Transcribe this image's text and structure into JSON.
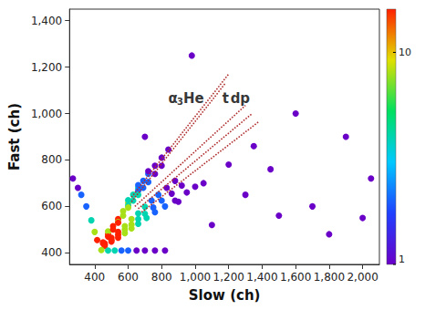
{
  "chart_data": {
    "type": "scatter",
    "x_label": "Slow (ch)",
    "y_label": "Fast (ch)",
    "xlim": [
      250,
      2100
    ],
    "xticks": [
      400,
      600,
      800,
      1000,
      1200,
      1400,
      1600,
      1800,
      2000
    ],
    "ylim": [
      350,
      1450
    ],
    "yticks": [
      400,
      600,
      800,
      1000,
      1200,
      1400
    ],
    "grid": false,
    "marker": "circle",
    "x": [
      450,
      480,
      510,
      540,
      570,
      600,
      630,
      660,
      690,
      720,
      760,
      800,
      840,
      480,
      540,
      600,
      600,
      660,
      660,
      720,
      450,
      480,
      510,
      540,
      570,
      600,
      630,
      660,
      690,
      720,
      760,
      800,
      460,
      500,
      540,
      580,
      620,
      660,
      700,
      740,
      780,
      830,
      880,
      460,
      500,
      540,
      580,
      620,
      660,
      700,
      750,
      800,
      860,
      920,
      460,
      500,
      540,
      580,
      620,
      660,
      710,
      760,
      820,
      880,
      950,
      1000,
      440,
      480,
      520,
      560,
      600,
      650,
      700,
      760,
      820,
      270,
      300,
      320,
      350,
      380,
      400,
      415,
      900,
      1050,
      1200,
      1350,
      1500,
      1700,
      1900,
      2050,
      1100,
      1300,
      980,
      1600,
      1800,
      2000,
      700,
      1450
    ],
    "values": [
      445,
      480,
      515,
      545,
      580,
      615,
      650,
      680,
      710,
      740,
      775,
      810,
      845,
      492,
      533,
      627,
      603,
      668,
      692,
      752,
      440,
      470,
      500,
      530,
      560,
      595,
      625,
      650,
      680,
      705,
      740,
      775,
      440,
      465,
      490,
      515,
      545,
      570,
      598,
      625,
      650,
      680,
      710,
      435,
      455,
      478,
      500,
      522,
      545,
      568,
      595,
      625,
      655,
      690,
      430,
      448,
      465,
      485,
      505,
      525,
      550,
      575,
      600,
      625,
      660,
      685,
      412,
      410,
      410,
      410,
      410,
      410,
      410,
      410,
      410,
      720,
      680,
      650,
      600,
      540,
      490,
      455,
      620,
      700,
      780,
      860,
      560,
      600,
      900,
      720,
      520,
      650,
      1250,
      1000,
      480,
      550,
      900,
      760
    ],
    "counts": [
      16,
      16,
      16,
      16,
      8,
      8,
      4,
      4,
      2,
      2,
      1,
      1,
      1,
      8,
      8,
      4,
      4,
      2,
      2,
      1,
      16,
      16,
      16,
      16,
      8,
      8,
      4,
      4,
      2,
      2,
      1,
      1,
      16,
      16,
      16,
      8,
      8,
      4,
      4,
      2,
      2,
      1,
      1,
      16,
      16,
      16,
      8,
      8,
      4,
      4,
      2,
      2,
      1,
      1,
      16,
      16,
      16,
      8,
      8,
      4,
      4,
      2,
      2,
      1,
      1,
      1,
      8,
      4,
      4,
      2,
      2,
      1,
      1,
      1,
      1,
      1,
      1,
      2,
      2,
      4,
      8,
      16,
      1,
      1,
      1,
      1,
      1,
      1,
      1,
      1,
      1,
      1,
      1,
      1,
      1,
      1,
      1,
      1
    ],
    "colorbar": {
      "range": [
        1,
        16
      ],
      "ticks": [
        1,
        10
      ],
      "log": true,
      "colors": [
        "#6a00c8",
        "#2040ff",
        "#00c8ff",
        "#00e060",
        "#e0e000",
        "#ff2000"
      ]
    },
    "lines": [
      {
        "color": "#b03030",
        "line_style": "dotted",
        "x": [
          620,
          1200
        ],
        "values": [
          640,
          1170
        ]
      },
      {
        "color": "#b03030",
        "line_style": "dotted",
        "x": [
          620,
          1180
        ],
        "values": [
          620,
          1130
        ]
      },
      {
        "color": "#b03030",
        "line_style": "dotted",
        "x": [
          640,
          1300
        ],
        "values": [
          600,
          1035
        ]
      },
      {
        "color": "#b03030",
        "line_style": "dotted",
        "x": [
          660,
          1340
        ],
        "values": [
          590,
          1000
        ]
      },
      {
        "color": "#b03030",
        "line_style": "dotted",
        "x": [
          680,
          1380
        ],
        "values": [
          575,
          965
        ]
      }
    ],
    "annotations": [
      {
        "text": "α",
        "x": 868,
        "y": 1064
      },
      {
        "text": "3He",
        "x": 972,
        "y": 1064
      },
      {
        "text": "t",
        "x": 1182,
        "y": 1064
      },
      {
        "text": "d",
        "x": 1240,
        "y": 1064
      },
      {
        "text": "p",
        "x": 1297,
        "y": 1064
      }
    ]
  }
}
